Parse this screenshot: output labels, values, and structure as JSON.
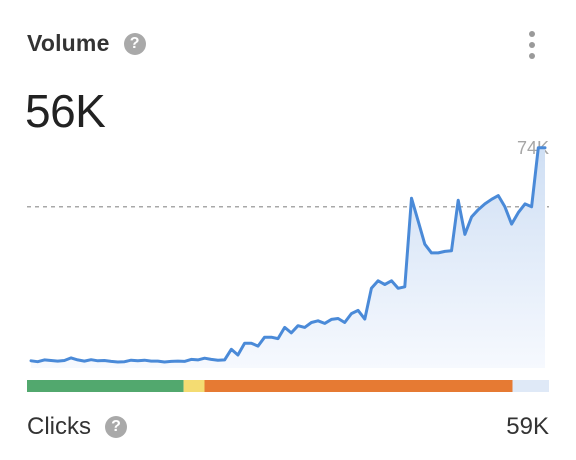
{
  "widget": {
    "title": "Volume",
    "help_icon": "question-circle-icon",
    "menu_icon": "kebab-vertical-icon",
    "value": "56K",
    "footer": {
      "label": "Clicks",
      "value": "59K"
    }
  },
  "chart_data": {
    "type": "area",
    "max_label": "74K",
    "reference_value": 56,
    "ylim": [
      0,
      74
    ],
    "values": [
      2.5,
      2.2,
      2.8,
      2.6,
      2.4,
      2.6,
      3.5,
      2.8,
      2.4,
      2.9,
      2.5,
      2.6,
      2.3,
      2.1,
      2.2,
      2.7,
      2.5,
      2.7,
      2.4,
      2.4,
      2.1,
      2.3,
      2.4,
      2.3,
      3.0,
      2.8,
      3.4,
      3.0,
      2.7,
      2.8,
      6.5,
      4.5,
      8.6,
      8.6,
      7.6,
      10.7,
      10.7,
      10.2,
      14.1,
      12.2,
      14.7,
      14.1,
      15.8,
      16.4,
      15.5,
      16.9,
      17.2,
      15.8,
      18.9,
      20.0,
      17.0,
      27.7,
      30.3,
      29.0,
      30.3,
      27.7,
      28.2,
      59.0,
      51.0,
      43.0,
      40.0,
      40.0,
      40.5,
      40.7,
      58.3,
      46.4,
      52.5,
      55.0,
      57.0,
      58.6,
      59.9,
      56.0,
      50.0,
      54.0,
      57.0,
      56.0,
      76.5,
      76.5
    ],
    "bar": {
      "segments": [
        {
          "name": "green",
          "fraction": 0.3,
          "color": "#52a86e"
        },
        {
          "name": "yellow",
          "fraction": 0.04,
          "color": "#f4dc72"
        },
        {
          "name": "orange",
          "fraction": 0.59,
          "color": "#e67a33"
        },
        {
          "name": "remainder",
          "fraction": 0.07,
          "color": "#dfe9f7"
        }
      ]
    },
    "colors": {
      "line": "#4a8ad8",
      "area_top": "#cfdff4",
      "area_bottom": "#f6f9fe",
      "reference_line": "#a8a8a8",
      "max_label": "#a6a6a6"
    }
  }
}
